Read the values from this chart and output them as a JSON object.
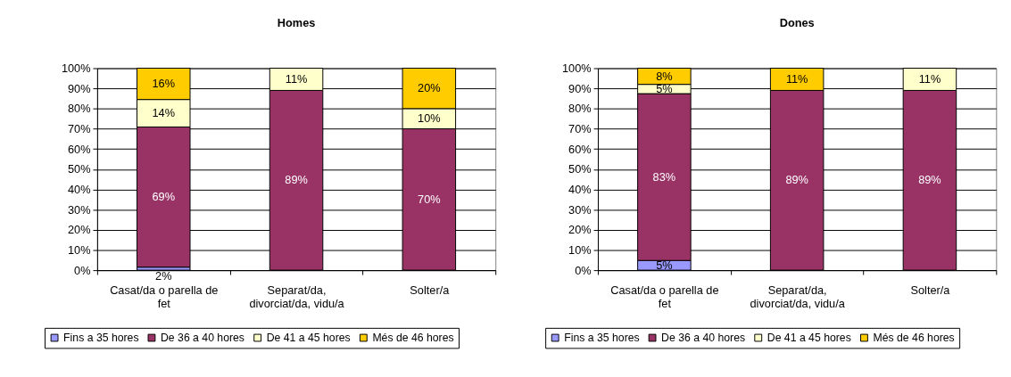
{
  "chart_data": [
    {
      "type": "bar",
      "title": "Homes",
      "categories": [
        "Casat/da o parella de fet",
        "Separat/da, divorciat/da, vidu/a",
        "Solter/a"
      ],
      "stacked": true,
      "ylim": [
        0,
        100
      ],
      "yticks": [
        {
          "value": 0,
          "label": "0%"
        },
        {
          "value": 10,
          "label": "10%"
        },
        {
          "value": 20,
          "label": "20%"
        },
        {
          "value": 30,
          "label": "30%"
        },
        {
          "value": 40,
          "label": "40%"
        },
        {
          "value": 50,
          "label": "50%"
        },
        {
          "value": 60,
          "label": "60%"
        },
        {
          "value": 70,
          "label": "70%"
        },
        {
          "value": 80,
          "label": "80%"
        },
        {
          "value": 90,
          "label": "90%"
        },
        {
          "value": 100,
          "label": "100%"
        }
      ],
      "grid": "y",
      "legend": "bottom",
      "series": [
        {
          "name": "Fins a 35 hores",
          "color": "#9999ff",
          "values": [
            1.5,
            null,
            null
          ],
          "value_labels": [
            "2%",
            null,
            null
          ]
        },
        {
          "name": "De 36 a 40 hores",
          "color": "#993366",
          "values": [
            69.4,
            89,
            70
          ],
          "value_labels": [
            "69%",
            "89%",
            "70%"
          ]
        },
        {
          "name": "De 41 a 45 hores",
          "color": "#ffffcc",
          "values": [
            13.6,
            11,
            10
          ],
          "value_labels": [
            "14%",
            "11%",
            "10%"
          ]
        },
        {
          "name": "Més de 46 hores",
          "color": "#ffcc00",
          "values": [
            15.5,
            null,
            20
          ],
          "value_labels": [
            "16%",
            null,
            "20%"
          ]
        }
      ]
    },
    {
      "type": "bar",
      "title": "Dones",
      "categories": [
        "Casat/da o parella de fet",
        "Separat/da, divorciat/da, vidu/a",
        "Solter/a"
      ],
      "stacked": true,
      "ylim": [
        0,
        100
      ],
      "yticks": [
        {
          "value": 0,
          "label": "0%"
        },
        {
          "value": 10,
          "label": "10%"
        },
        {
          "value": 20,
          "label": "20%"
        },
        {
          "value": 30,
          "label": "30%"
        },
        {
          "value": 40,
          "label": "40%"
        },
        {
          "value": 50,
          "label": "50%"
        },
        {
          "value": 60,
          "label": "60%"
        },
        {
          "value": 70,
          "label": "70%"
        },
        {
          "value": 80,
          "label": "80%"
        },
        {
          "value": 90,
          "label": "90%"
        },
        {
          "value": 100,
          "label": "100%"
        }
      ],
      "grid": "y",
      "legend": "bottom",
      "series": [
        {
          "name": "Fins a 35 hores",
          "color": "#9999ff",
          "values": [
            4.8,
            null,
            null
          ],
          "value_labels": [
            "5%",
            null,
            null
          ]
        },
        {
          "name": "De 36 a 40 hores",
          "color": "#993366",
          "values": [
            82.6,
            89,
            89
          ],
          "value_labels": [
            "83%",
            "89%",
            "89%"
          ]
        },
        {
          "name": "De 41 a 45 hores",
          "color": "#ffffcc",
          "values": [
            4.6,
            null,
            11
          ],
          "value_labels": [
            "5%",
            null,
            "11%"
          ]
        },
        {
          "name": "Més de 46 hores",
          "color": "#ffcc00",
          "values": [
            8.0,
            11,
            null
          ],
          "value_labels": [
            "8%",
            "11%",
            null
          ]
        }
      ]
    }
  ]
}
